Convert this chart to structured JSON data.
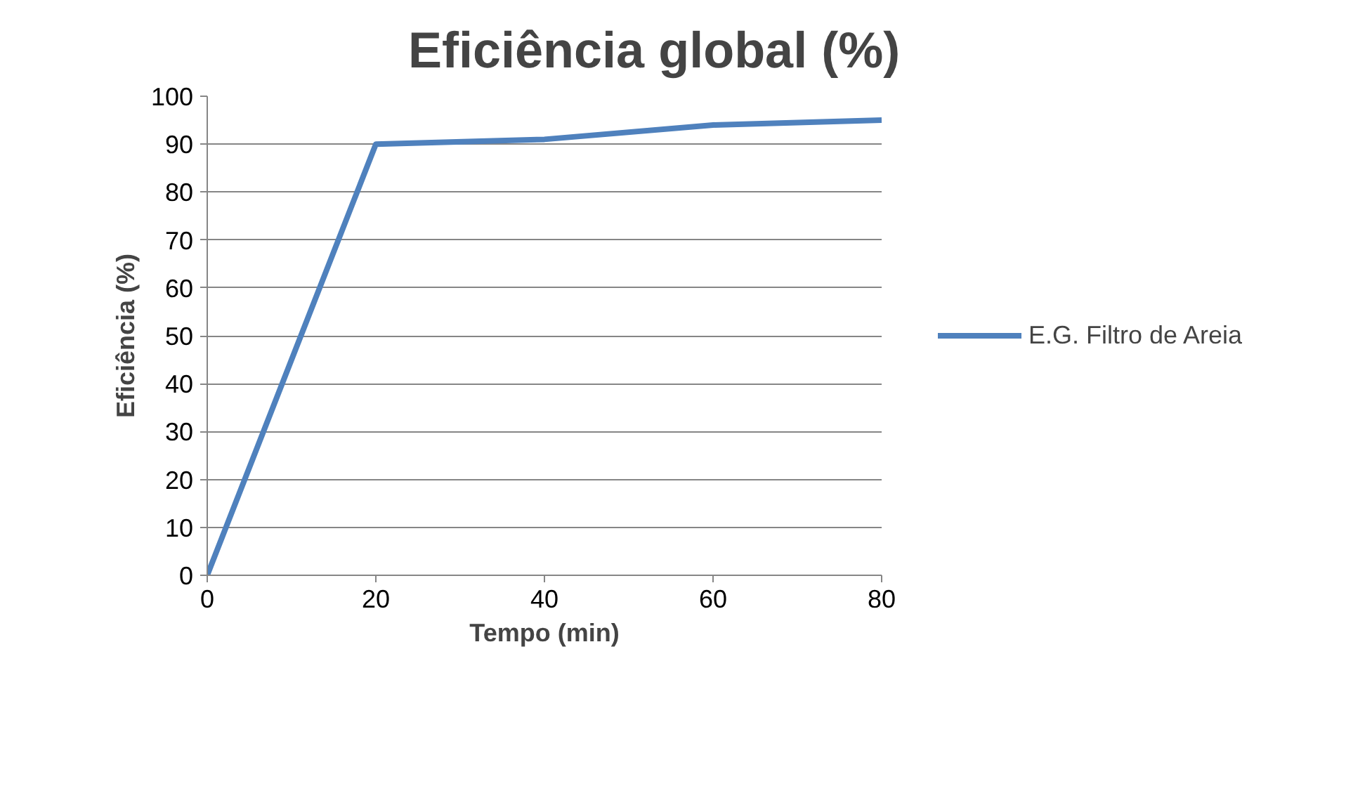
{
  "chart_data": {
    "type": "line",
    "title": "Eficiência global (%)",
    "xlabel": "Tempo (min)",
    "ylabel": "Eficiência (%)",
    "x": [
      0,
      20,
      40,
      60,
      80
    ],
    "series": [
      {
        "name": "E.G. Filtro de Areia",
        "color": "#4f81bd",
        "values": [
          0,
          90,
          91,
          94,
          95
        ]
      }
    ],
    "xlim": [
      0,
      80
    ],
    "xticks": [
      0,
      20,
      40,
      60,
      80
    ],
    "ylim": [
      0,
      100
    ],
    "yticks": [
      0,
      10,
      20,
      30,
      40,
      50,
      60,
      70,
      80,
      90,
      100
    ],
    "grid": "y",
    "legend": "right",
    "marker": "none",
    "line_style": "solid"
  }
}
